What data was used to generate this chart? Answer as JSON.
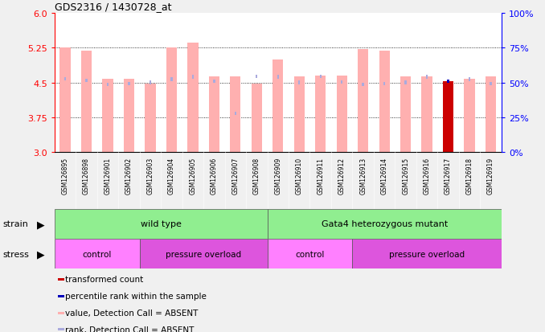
{
  "title": "GDS2316 / 1430728_at",
  "samples": [
    "GSM126895",
    "GSM126898",
    "GSM126901",
    "GSM126902",
    "GSM126903",
    "GSM126904",
    "GSM126905",
    "GSM126906",
    "GSM126907",
    "GSM126908",
    "GSM126909",
    "GSM126910",
    "GSM126911",
    "GSM126912",
    "GSM126913",
    "GSM126914",
    "GSM126915",
    "GSM126916",
    "GSM126917",
    "GSM126918",
    "GSM126919"
  ],
  "value_bars": [
    5.25,
    5.18,
    4.57,
    4.57,
    4.48,
    5.25,
    5.36,
    4.63,
    4.63,
    4.47,
    5.0,
    4.63,
    4.65,
    4.65,
    5.22,
    5.18,
    4.63,
    4.63,
    4.53,
    4.57,
    4.63
  ],
  "rank_dots": [
    4.58,
    4.55,
    4.45,
    4.47,
    4.5,
    4.57,
    4.62,
    4.52,
    3.83,
    4.63,
    4.62,
    4.5,
    4.63,
    4.51,
    4.45,
    4.47,
    4.5,
    4.62,
    4.53,
    4.57,
    4.48
  ],
  "is_red_bar": [
    false,
    false,
    false,
    false,
    false,
    false,
    false,
    false,
    false,
    false,
    false,
    false,
    false,
    false,
    false,
    false,
    false,
    false,
    true,
    false,
    false
  ],
  "is_blue_dot": [
    false,
    false,
    false,
    false,
    false,
    false,
    false,
    false,
    false,
    false,
    false,
    false,
    false,
    false,
    false,
    false,
    false,
    false,
    true,
    false,
    false
  ],
  "ylim": [
    3.0,
    6.0
  ],
  "yticks_left": [
    3.0,
    3.75,
    4.5,
    5.25,
    6.0
  ],
  "yticks_right": [
    0,
    25,
    50,
    75,
    100
  ],
  "dotted_lines": [
    3.75,
    4.5,
    5.25
  ],
  "strain_groups": [
    {
      "label": "wild type",
      "start": 0,
      "end": 9,
      "color": "#90EE90"
    },
    {
      "label": "Gata4 heterozygous mutant",
      "start": 10,
      "end": 20,
      "color": "#90EE90"
    }
  ],
  "stress_groups": [
    {
      "label": "control",
      "start": 0,
      "end": 3,
      "color": "#FF80FF"
    },
    {
      "label": "pressure overload",
      "start": 4,
      "end": 9,
      "color": "#DD55DD"
    },
    {
      "label": "control",
      "start": 10,
      "end": 13,
      "color": "#FF80FF"
    },
    {
      "label": "pressure overload",
      "start": 14,
      "end": 20,
      "color": "#DD55DD"
    }
  ],
  "bar_color_absent": "#FFB0B0",
  "bar_color_red": "#CC0000",
  "dot_color_absent": "#AAAADD",
  "dot_color_blue": "#0000BB",
  "legend_items": [
    {
      "color": "#CC0000",
      "label": "transformed count",
      "shape": "square"
    },
    {
      "color": "#0000BB",
      "label": "percentile rank within the sample",
      "shape": "square"
    },
    {
      "color": "#FFB0B0",
      "label": "value, Detection Call = ABSENT",
      "shape": "square"
    },
    {
      "color": "#AAAADD",
      "label": "rank, Detection Call = ABSENT",
      "shape": "square"
    }
  ],
  "fig_bg": "#F0F0F0",
  "plot_bg": "#FFFFFF",
  "tick_area_bg": "#C8C8C8",
  "bar_width": 0.5,
  "dot_size": 0.09
}
